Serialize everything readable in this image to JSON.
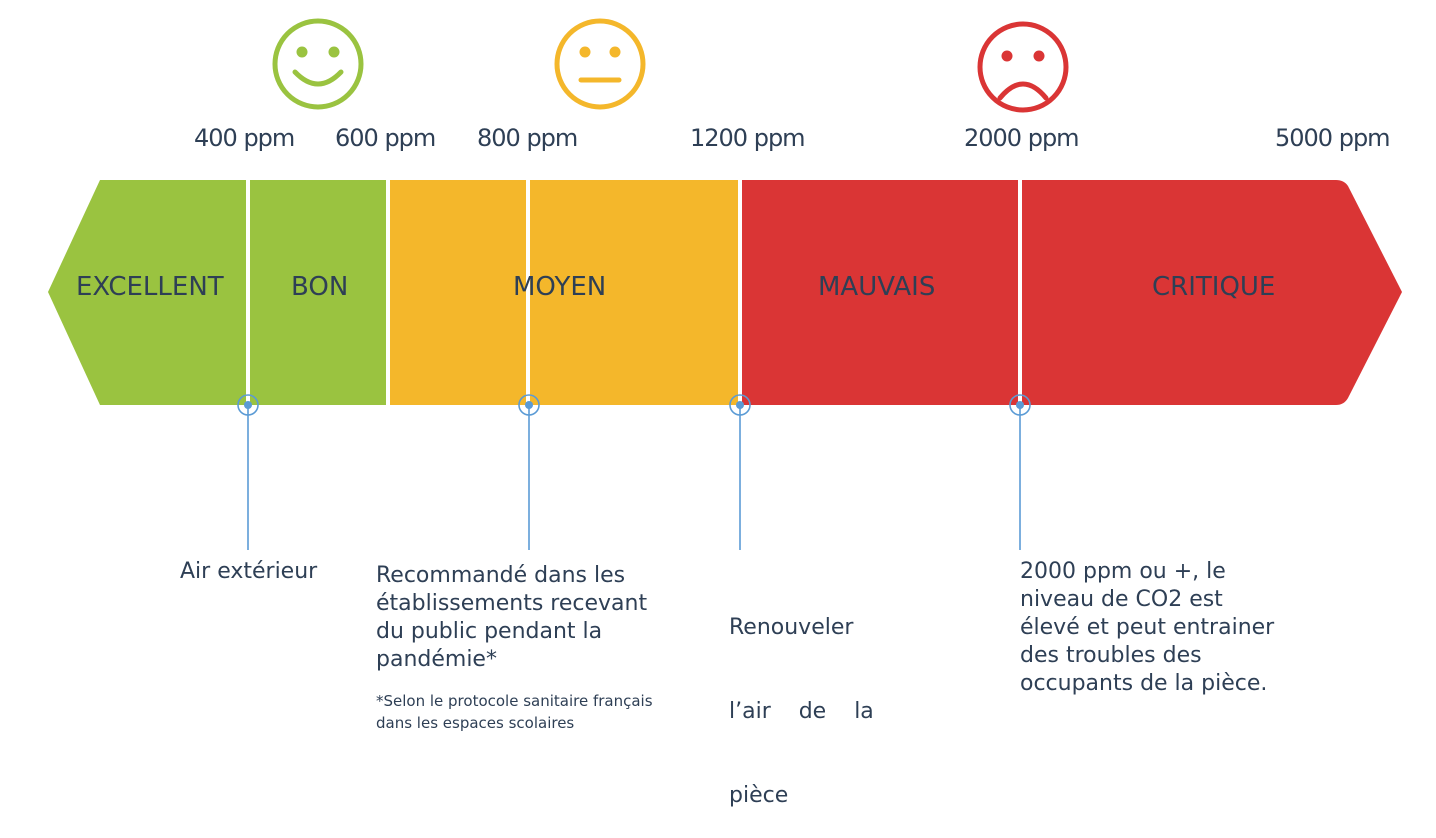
{
  "thresholds": [
    {
      "label": "400 ppm",
      "value": 400
    },
    {
      "label": "600 ppm",
      "value": 600
    },
    {
      "label": "800 ppm",
      "value": 800
    },
    {
      "label": "1200 ppm",
      "value": 1200
    },
    {
      "label": "2000 ppm",
      "value": 2000
    },
    {
      "label": "5000 ppm",
      "value": 5000
    }
  ],
  "bands": [
    {
      "label": "EXCELLENT",
      "color": "#9ac340"
    },
    {
      "label": "BON",
      "color": "#9ac340"
    },
    {
      "label": "MOYEN",
      "color": "#f4b72b"
    },
    {
      "label": "MAUVAIS",
      "color": "#da3535"
    },
    {
      "label": "CRITIQUE",
      "color": "#da3535"
    }
  ],
  "faces": [
    {
      "mood": "happy",
      "icon": "smiley-happy-icon",
      "color": "#9ac340"
    },
    {
      "mood": "neutral",
      "icon": "smiley-neutral-icon",
      "color": "#f4b72b"
    },
    {
      "mood": "sad",
      "icon": "smiley-sad-icon",
      "color": "#da3535"
    }
  ],
  "annotations": [
    {
      "lines": [
        "Air extérieur"
      ]
    },
    {
      "lines": [
        "Recommandé dans les",
        "établissements recevant",
        "du public pendant la",
        "pandémie*"
      ]
    },
    {
      "lines": [
        "Renouveler",
        "l’air    de    la",
        "pièce"
      ]
    },
    {
      "lines": [
        "2000 ppm ou +, le",
        "niveau de CO2 est",
        "élevé et peut entrainer",
        "des troubles des",
        "occupants de la pièce."
      ]
    }
  ],
  "footnote": [
    "*Selon le protocole sanitaire français",
    "dans les espaces scolaires"
  ],
  "connector_color": "#5b9bd5"
}
